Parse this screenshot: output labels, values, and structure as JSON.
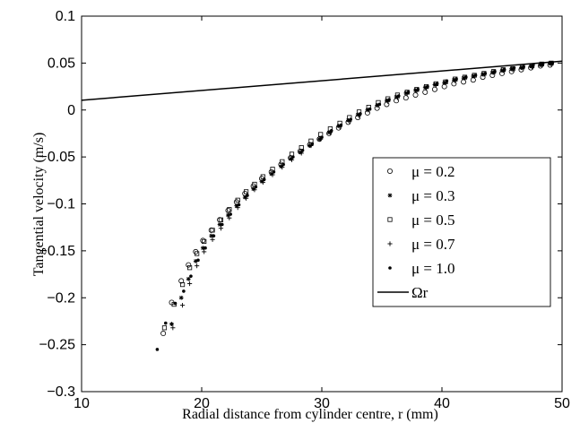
{
  "chart_data": {
    "type": "scatter",
    "title": "",
    "xlabel": "Radial distance from cylinder centre, r (mm)",
    "ylabel": "Tangential velocity (m/s)",
    "xlim": [
      10,
      50
    ],
    "ylim": [
      -0.3,
      0.1
    ],
    "xticks": [
      10,
      20,
      30,
      40,
      50
    ],
    "yticks": [
      -0.3,
      -0.25,
      -0.2,
      -0.15,
      -0.1,
      -0.05,
      0,
      0.05,
      0.1
    ],
    "xtick_labels": [
      "10",
      "20",
      "30",
      "40",
      "50"
    ],
    "ytick_labels": [
      "−0.3",
      "−0.25",
      "−0.2",
      "−0.15",
      "−0.1",
      "−0.05",
      "0",
      "0.05",
      "0.1"
    ],
    "grid": false,
    "legend_position": "right",
    "series": [
      {
        "name": "μ = 0.2",
        "marker": "circle-open",
        "x": [
          16.8,
          17.5,
          18.3,
          18.9,
          19.5,
          20.1,
          20.8,
          21.5,
          22.2,
          22.9,
          23.6,
          24.3,
          25.0,
          25.8,
          26.6,
          27.4,
          28.2,
          29.0,
          29.8,
          30.6,
          31.4,
          32.2,
          33.0,
          33.8,
          34.6,
          35.4,
          36.2,
          37.0,
          37.8,
          38.6,
          39.4,
          40.2,
          41.0,
          41.8,
          42.6,
          43.4,
          44.2,
          45.0,
          45.8,
          46.6,
          47.4,
          48.2,
          49.0
        ],
        "y": [
          -0.238,
          -0.205,
          -0.182,
          -0.165,
          -0.151,
          -0.139,
          -0.128,
          -0.117,
          -0.107,
          -0.098,
          -0.089,
          -0.081,
          -0.073,
          -0.066,
          -0.058,
          -0.051,
          -0.044,
          -0.037,
          -0.031,
          -0.025,
          -0.019,
          -0.013,
          -0.008,
          -0.003,
          0.002,
          0.006,
          0.01,
          0.013,
          0.016,
          0.019,
          0.022,
          0.025,
          0.028,
          0.03,
          0.032,
          0.035,
          0.037,
          0.039,
          0.041,
          0.043,
          0.045,
          0.047,
          0.048
        ]
      },
      {
        "name": "μ = 0.3",
        "marker": "star",
        "x": [
          17.5,
          18.3,
          18.9,
          19.5,
          20.1,
          20.8,
          21.5,
          22.2,
          22.9,
          23.6,
          24.3,
          25.0,
          25.8,
          26.6,
          27.4,
          28.2,
          29.0,
          29.8,
          30.6,
          31.4,
          32.2,
          33.0,
          33.8,
          34.6,
          35.4,
          36.2,
          37.0,
          37.8,
          38.6,
          39.4,
          40.2,
          41.0,
          41.8,
          42.6,
          43.4,
          44.2,
          45.0,
          45.8,
          46.6,
          47.4,
          48.2,
          49.0
        ],
        "y": [
          -0.228,
          -0.2,
          -0.18,
          -0.161,
          -0.147,
          -0.134,
          -0.122,
          -0.112,
          -0.102,
          -0.093,
          -0.084,
          -0.076,
          -0.068,
          -0.06,
          -0.052,
          -0.045,
          -0.038,
          -0.031,
          -0.024,
          -0.017,
          -0.011,
          -0.005,
          0.0,
          0.005,
          0.01,
          0.014,
          0.018,
          0.021,
          0.024,
          0.027,
          0.029,
          0.032,
          0.034,
          0.036,
          0.038,
          0.04,
          0.042,
          0.044,
          0.045,
          0.047,
          0.048,
          0.05
        ]
      },
      {
        "name": "μ = 0.5",
        "marker": "square-open",
        "x": [
          16.9,
          17.7,
          18.4,
          19.0,
          19.6,
          20.2,
          20.9,
          21.6,
          22.3,
          23.0,
          23.7,
          24.4,
          25.1,
          25.9,
          26.7,
          27.5,
          28.3,
          29.1,
          29.9,
          30.7,
          31.5,
          32.3,
          33.1,
          33.9,
          34.7,
          35.5,
          36.3,
          37.1,
          37.9,
          38.7,
          39.5,
          40.3,
          41.1,
          41.9,
          42.7,
          43.5,
          44.3,
          45.1,
          45.9,
          46.7,
          47.5,
          48.3,
          49.1
        ],
        "y": [
          -0.232,
          -0.207,
          -0.186,
          -0.168,
          -0.153,
          -0.14,
          -0.128,
          -0.117,
          -0.106,
          -0.096,
          -0.087,
          -0.079,
          -0.071,
          -0.063,
          -0.055,
          -0.047,
          -0.04,
          -0.033,
          -0.026,
          -0.02,
          -0.014,
          -0.008,
          -0.002,
          0.003,
          0.008,
          0.012,
          0.016,
          0.019,
          0.022,
          0.025,
          0.028,
          0.03,
          0.033,
          0.035,
          0.037,
          0.039,
          0.041,
          0.043,
          0.044,
          0.046,
          0.047,
          0.049,
          0.05
        ]
      },
      {
        "name": "μ = 0.7",
        "marker": "plus",
        "x": [
          17.6,
          18.4,
          19.0,
          19.6,
          20.2,
          20.9,
          21.6,
          22.3,
          23.0,
          23.7,
          24.4,
          25.1,
          25.9,
          26.7,
          27.5,
          28.3,
          29.1,
          29.9,
          30.7,
          31.5,
          32.3,
          33.1,
          33.9,
          34.7,
          35.5,
          36.3,
          37.1,
          37.9,
          38.7,
          39.5,
          40.3,
          41.1,
          41.9,
          42.7,
          43.5,
          44.3,
          45.1,
          45.9,
          46.7,
          47.5,
          48.3,
          49.1
        ],
        "y": [
          -0.232,
          -0.208,
          -0.185,
          -0.166,
          -0.151,
          -0.138,
          -0.126,
          -0.115,
          -0.104,
          -0.094,
          -0.085,
          -0.077,
          -0.069,
          -0.061,
          -0.053,
          -0.046,
          -0.038,
          -0.031,
          -0.024,
          -0.018,
          -0.012,
          -0.006,
          0.0,
          0.005,
          0.009,
          0.013,
          0.017,
          0.02,
          0.023,
          0.026,
          0.029,
          0.031,
          0.034,
          0.036,
          0.038,
          0.04,
          0.042,
          0.043,
          0.045,
          0.046,
          0.048,
          0.049
        ]
      },
      {
        "name": "μ = 1.0",
        "marker": "dot",
        "x": [
          16.3,
          17.0,
          17.8,
          18.5,
          19.1,
          19.7,
          20.3,
          21.0,
          21.7,
          22.4,
          23.1,
          23.8,
          24.5,
          25.2,
          26.0,
          26.8,
          27.6,
          28.4,
          29.2,
          30.0,
          30.8,
          31.6,
          32.4,
          33.2,
          34.0,
          34.8,
          35.6,
          36.4,
          37.2,
          38.0,
          38.8,
          39.6,
          40.4,
          41.2,
          42.0,
          42.8,
          43.6,
          44.4,
          45.2,
          46.0,
          46.8,
          47.6,
          48.4,
          49.2
        ],
        "y": [
          -0.255,
          -0.227,
          -0.206,
          -0.193,
          -0.177,
          -0.16,
          -0.147,
          -0.134,
          -0.122,
          -0.111,
          -0.101,
          -0.091,
          -0.082,
          -0.074,
          -0.066,
          -0.058,
          -0.05,
          -0.043,
          -0.036,
          -0.029,
          -0.022,
          -0.016,
          -0.01,
          -0.004,
          0.001,
          0.006,
          0.011,
          0.015,
          0.019,
          0.022,
          0.025,
          0.028,
          0.031,
          0.033,
          0.035,
          0.037,
          0.039,
          0.041,
          0.043,
          0.045,
          0.046,
          0.048,
          0.049,
          0.05
        ]
      },
      {
        "name": "Ωr",
        "marker": "line",
        "x": [
          10,
          50
        ],
        "y": [
          0.0104,
          0.052
        ]
      }
    ]
  }
}
